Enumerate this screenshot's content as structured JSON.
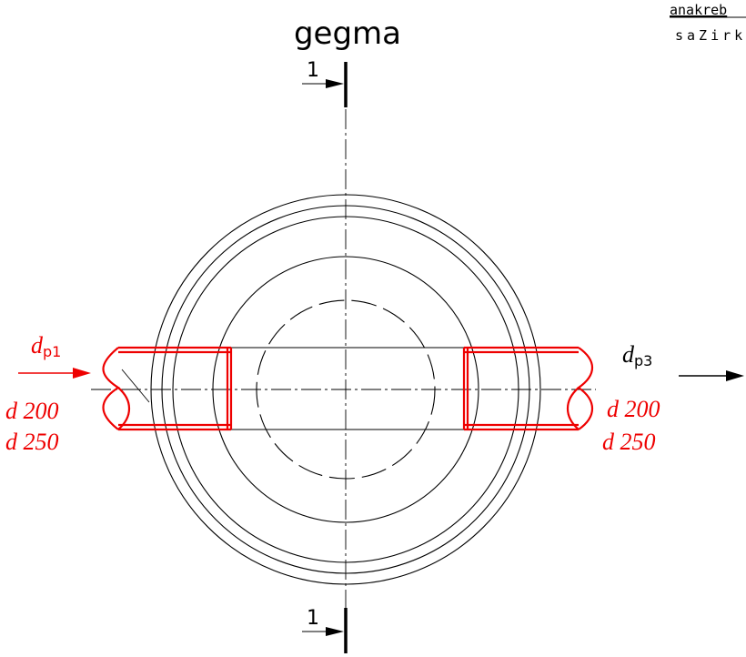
{
  "drawing": {
    "title": "gegma",
    "corner_note_line1": "anakreb",
    "corner_note_line2": "saZirk",
    "section_marker_top": "1",
    "section_marker_bottom": "1",
    "inlet": {
      "label_main": "d",
      "label_sub": "p1",
      "size_1": "d 200",
      "size_2": "d 250"
    },
    "outlet": {
      "label_main": "d",
      "label_sub": "p3",
      "size_1": "d 200",
      "size_2": "d 250"
    },
    "colors": {
      "line": "#000000",
      "pipe": "#ee0000",
      "background": "#ffffff"
    }
  }
}
